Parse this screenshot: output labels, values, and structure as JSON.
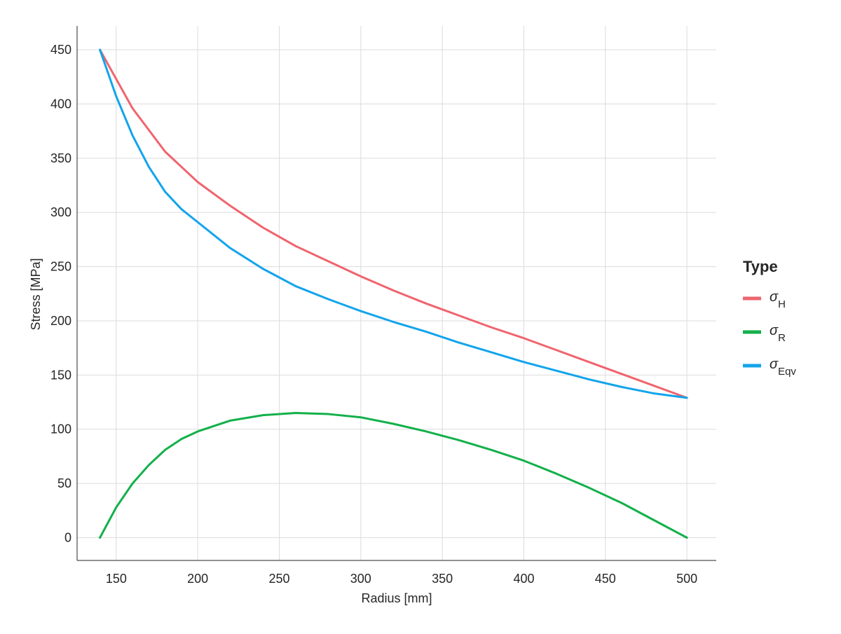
{
  "chart_data": {
    "type": "line",
    "xlabel": "Radius [mm]",
    "ylabel": "Stress [MPa]",
    "xlim": [
      126,
      518
    ],
    "ylim": [
      -21,
      472
    ],
    "x_ticks": [
      150,
      200,
      250,
      300,
      350,
      400,
      450,
      500
    ],
    "y_ticks": [
      0,
      50,
      100,
      150,
      200,
      250,
      300,
      350,
      400,
      450
    ],
    "grid": true,
    "legend": {
      "title": "Type",
      "placement": "right",
      "entries": [
        {
          "symbol": "σ",
          "subscript": "H",
          "color": "#F0646E"
        },
        {
          "symbol": "σ",
          "subscript": "R",
          "color": "#12B04A"
        },
        {
          "symbol": "σ",
          "subscript": "Eqv",
          "color": "#12A4EC"
        }
      ]
    },
    "series": [
      {
        "key": "sigma_H",
        "color": "#F0646E",
        "x": [
          140,
          160,
          180,
          200,
          220,
          240,
          260,
          280,
          300,
          320,
          340,
          360,
          380,
          400,
          420,
          440,
          460,
          480,
          500
        ],
        "y": [
          450,
          396,
          356,
          328,
          306,
          286,
          269,
          255,
          241,
          228,
          216,
          205,
          194,
          184,
          173,
          162,
          151,
          140,
          129
        ]
      },
      {
        "key": "sigma_R",
        "color": "#12B04A",
        "x": [
          140,
          150,
          160,
          170,
          180,
          190,
          200,
          220,
          240,
          260,
          280,
          300,
          320,
          340,
          360,
          380,
          400,
          420,
          440,
          460,
          480,
          500
        ],
        "y": [
          0,
          28,
          50,
          67,
          81,
          91,
          98,
          108,
          113,
          115,
          114,
          111,
          105,
          98,
          90,
          81,
          71,
          59,
          46,
          32,
          16,
          0
        ]
      },
      {
        "key": "sigma_Eqv",
        "color": "#12A4EC",
        "x": [
          140,
          150,
          160,
          170,
          180,
          190,
          200,
          220,
          240,
          260,
          280,
          300,
          320,
          340,
          360,
          380,
          400,
          420,
          440,
          460,
          480,
          500
        ],
        "y": [
          450,
          407,
          371,
          342,
          319,
          303,
          291,
          267,
          248,
          232,
          220,
          209,
          199,
          190,
          180,
          171,
          162,
          154,
          146,
          139,
          133,
          129
        ]
      }
    ]
  }
}
